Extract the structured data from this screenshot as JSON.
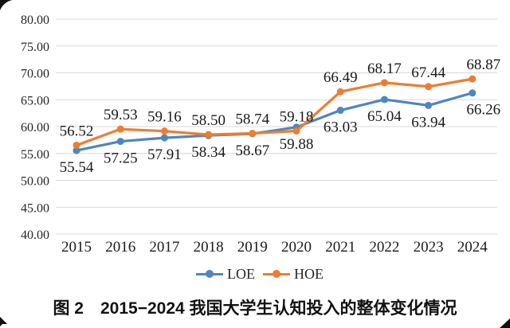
{
  "caption": "图 2　2015−2024 我国大学生认知投入的整体变化情况",
  "legend": {
    "items": [
      {
        "label": "LOE",
        "color": "#4e86c0"
      },
      {
        "label": "HOE",
        "color": "#ed7d31"
      }
    ]
  },
  "colors": {
    "loe_blue": "#4e86c0",
    "hoe_orange": "#ed7d31",
    "gridline": "#d9d9d9",
    "text": "#1a1a1a"
  },
  "chart_data": {
    "type": "line",
    "title": "",
    "xlabel": "",
    "ylabel": "",
    "categories": [
      "2015",
      "2016",
      "2017",
      "2018",
      "2019",
      "2020",
      "2021",
      "2022",
      "2023",
      "2024"
    ],
    "series": [
      {
        "name": "LOE",
        "color": "#4e86c0",
        "label_position": "below",
        "values": [
          55.54,
          57.25,
          57.91,
          58.34,
          58.67,
          59.88,
          63.03,
          65.04,
          63.94,
          66.26
        ]
      },
      {
        "name": "HOE",
        "color": "#ed7d31",
        "label_position": "above",
        "values": [
          56.52,
          59.53,
          59.16,
          58.5,
          58.74,
          59.18,
          66.49,
          68.17,
          67.44,
          68.87
        ]
      }
    ],
    "y_axis": {
      "min": 40,
      "max": 80,
      "step": 5
    },
    "y_ticks": [
      "80.00",
      "75.00",
      "70.00",
      "65.00",
      "60.00",
      "55.00",
      "50.00",
      "45.00",
      "40.00"
    ],
    "grid": true,
    "legend_position": "bottom",
    "data_labels": true
  }
}
